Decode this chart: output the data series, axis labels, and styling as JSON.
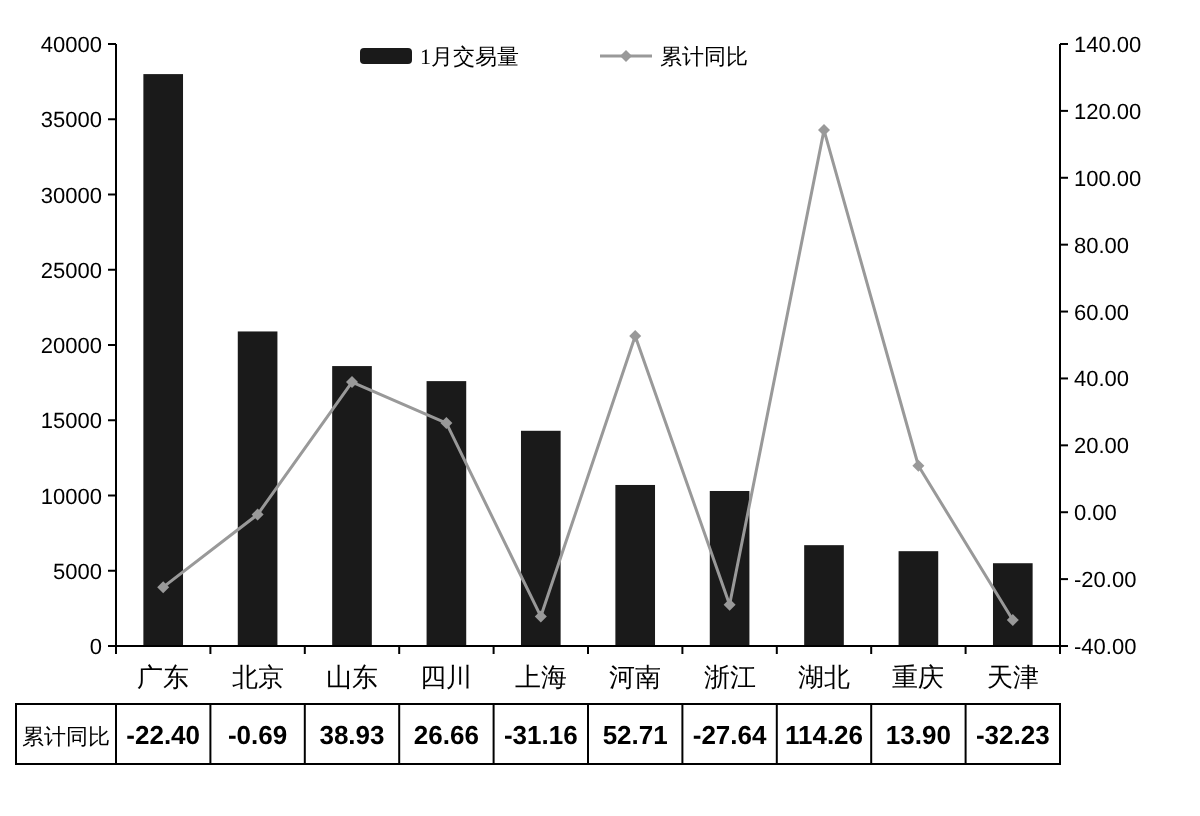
{
  "chart_data": {
    "type": "bar",
    "categories": [
      "广东",
      "北京",
      "山东",
      "四川",
      "上海",
      "河南",
      "浙江",
      "湖北",
      "重庆",
      "天津"
    ],
    "series": [
      {
        "name": "1月交易量",
        "color": "#1a1a1a",
        "values": [
          38000,
          20900,
          18600,
          17600,
          14300,
          10700,
          10300,
          6700,
          6300,
          5500
        ]
      },
      {
        "name": "累计同比",
        "type": "line",
        "axis": "y2",
        "color": "#999999",
        "marker": "diamond",
        "values": [
          -22.4,
          -0.69,
          38.93,
          26.66,
          -31.16,
          52.71,
          -27.64,
          114.26,
          13.9,
          -32.23
        ],
        "value_labels": [
          "-22.40",
          "-0.69",
          "38.93",
          "26.66",
          "-31.16",
          "52.71",
          "-27.64",
          "114.26",
          "13.90",
          "-32.23"
        ]
      }
    ],
    "ylim": [
      0,
      40000
    ],
    "yticks": [
      0,
      5000,
      10000,
      15000,
      20000,
      25000,
      30000,
      35000,
      40000
    ],
    "y2lim": [
      -40,
      140
    ],
    "y2ticks": [
      {
        "value": -40,
        "label": "-40.00"
      },
      {
        "value": -20,
        "label": "-20.00"
      },
      {
        "value": 0,
        "label": "0.00"
      },
      {
        "value": 20,
        "label": "20.00"
      },
      {
        "value": 40,
        "label": "40.00"
      },
      {
        "value": 60,
        "label": "60.00"
      },
      {
        "value": 80,
        "label": "80.00"
      },
      {
        "value": 100,
        "label": "100.00"
      },
      {
        "value": 120,
        "label": "120.00"
      },
      {
        "value": 140,
        "label": "140.00"
      }
    ],
    "legend": "top",
    "grid": false
  }
}
